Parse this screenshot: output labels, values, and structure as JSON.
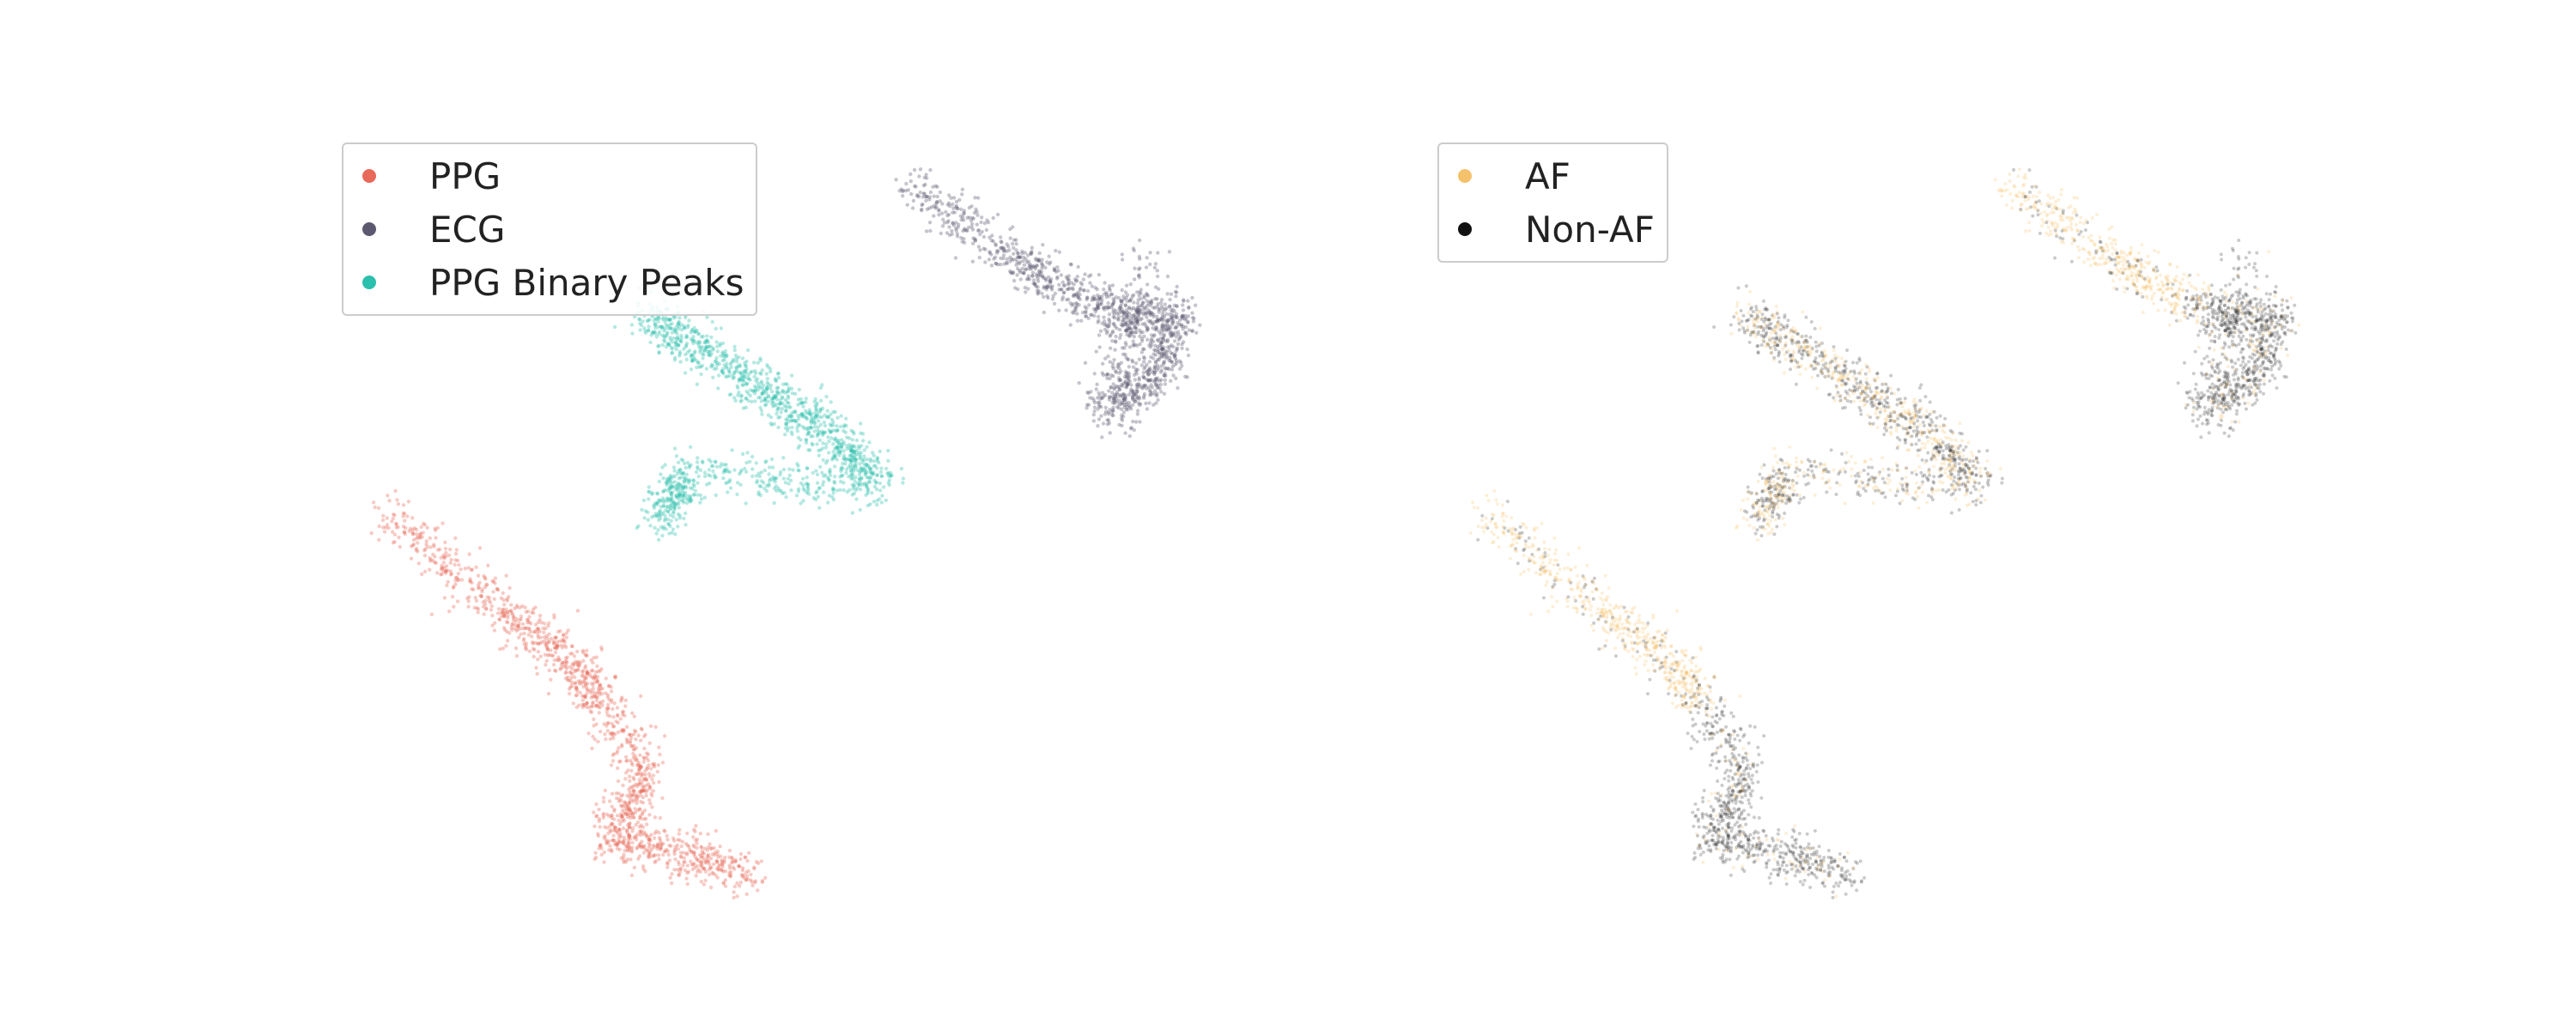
{
  "chart_data": [
    {
      "type": "scatter",
      "title": "",
      "xlabel": "",
      "ylabel": "",
      "axes_visible": false,
      "grid": false,
      "legend_placement": "top-left",
      "series": [
        {
          "name": "PPG",
          "color": "#e8695a",
          "points": [
            [
              -9.0,
              7.0
            ],
            [
              -7.2,
              5.5
            ],
            [
              -6.0,
              4.6
            ],
            [
              -5.4,
              4.0
            ],
            [
              -4.6,
              2.6
            ],
            [
              -5.2,
              1.6
            ],
            [
              -4.0,
              1.4
            ],
            [
              -2.8,
              1.0
            ]
          ]
        },
        {
          "name": "ECG",
          "color": "#5b5870",
          "points": [
            [
              -0.2,
              12.4
            ],
            [
              1.6,
              11.2
            ],
            [
              2.6,
              10.6
            ],
            [
              3.6,
              10.1
            ],
            [
              4.4,
              10.2
            ],
            [
              4.0,
              9.2
            ],
            [
              3.2,
              8.6
            ],
            [
              3.9,
              11.2
            ]
          ]
        },
        {
          "name": "PPG Binary Peaks",
          "color": "#2bbfad",
          "points": [
            [
              -4.6,
              10.2
            ],
            [
              -3.6,
              9.6
            ],
            [
              -2.4,
              8.9
            ],
            [
              -1.4,
              8.2
            ],
            [
              -0.6,
              7.4
            ],
            [
              -3.9,
              7.6
            ],
            [
              -4.3,
              6.8
            ]
          ]
        }
      ]
    },
    {
      "type": "scatter",
      "title": "",
      "xlabel": "",
      "ylabel": "",
      "axes_visible": false,
      "grid": false,
      "legend_placement": "top-left",
      "series": [
        {
          "name": "AF",
          "color": "#f5b84e"
        },
        {
          "name": "Non-AF",
          "color": "#111111"
        }
      ]
    }
  ]
}
